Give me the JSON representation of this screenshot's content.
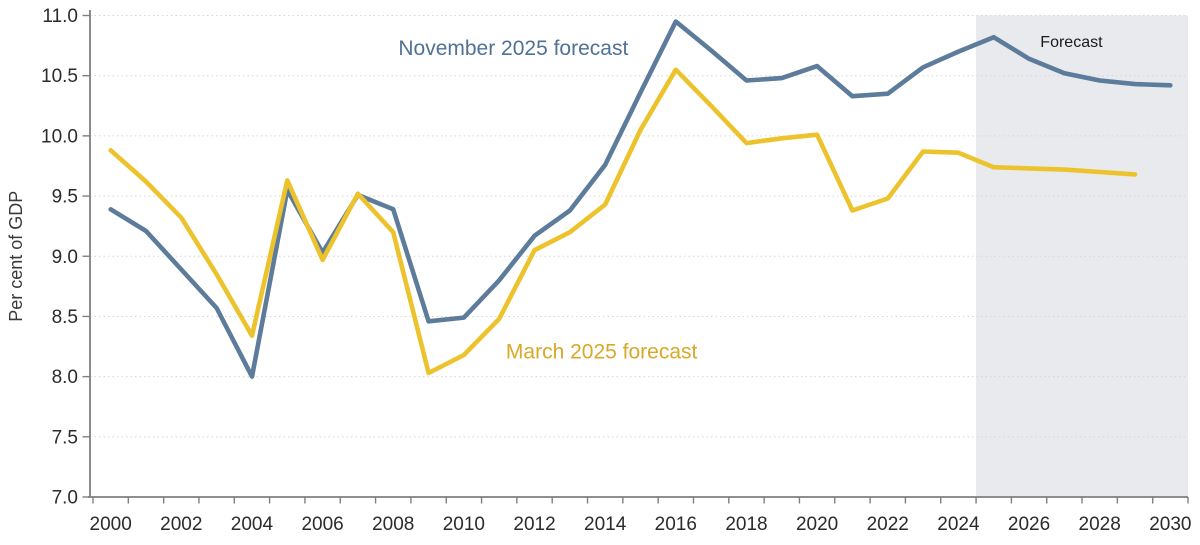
{
  "chart_data": {
    "type": "line",
    "title": "",
    "xlabel": "",
    "ylabel": "Per cent of GDP",
    "xlim": [
      1999.5,
      2030.5
    ],
    "ylim": [
      7.0,
      11.0
    ],
    "grid": "horizontal-dotted",
    "legend_position": "inline-labels",
    "x": [
      2000,
      2001,
      2002,
      2003,
      2004,
      2005,
      2006,
      2007,
      2008,
      2009,
      2010,
      2011,
      2012,
      2013,
      2014,
      2015,
      2016,
      2017,
      2018,
      2019,
      2020,
      2021,
      2022,
      2023,
      2024,
      2025,
      2026,
      2027,
      2028,
      2029,
      2030
    ],
    "series": [
      {
        "name": "November 2025 forecast",
        "color": "#5d7b9a",
        "values": [
          9.39,
          9.21,
          8.89,
          8.57,
          8.0,
          9.55,
          9.03,
          9.51,
          9.39,
          8.46,
          8.49,
          8.8,
          9.17,
          9.38,
          9.76,
          10.36,
          10.95,
          10.71,
          10.46,
          10.48,
          10.58,
          10.33,
          10.35,
          10.57,
          10.7,
          10.82,
          10.64,
          10.52,
          10.46,
          10.43,
          10.42
        ]
      },
      {
        "name": "March 2025 forecast",
        "color": "#ecc32d",
        "values": [
          9.88,
          9.62,
          9.32,
          8.85,
          8.34,
          9.63,
          8.97,
          9.52,
          9.2,
          8.03,
          8.18,
          8.48,
          9.05,
          9.2,
          9.43,
          10.05,
          10.55,
          10.25,
          9.94,
          9.98,
          10.01,
          9.38,
          9.48,
          9.87,
          9.86,
          9.74,
          9.73,
          9.72,
          9.7,
          9.68,
          null
        ]
      }
    ],
    "y_ticks": [
      7.0,
      7.5,
      8.0,
      8.5,
      9.0,
      9.5,
      10.0,
      10.5,
      11.0
    ],
    "y_grid_values": [
      7.5,
      8.0,
      8.5,
      9.0,
      9.5,
      10.0,
      10.5,
      11.0
    ],
    "x_tick_label_years": [
      2000,
      2002,
      2004,
      2006,
      2008,
      2010,
      2012,
      2014,
      2016,
      2018,
      2020,
      2022,
      2024,
      2026,
      2028,
      2030
    ],
    "forecast_region": {
      "start": 2024.5,
      "end": 2030.5,
      "fill": "#e8eaed"
    },
    "annotations": [
      {
        "id": "november-series-label",
        "text": "November 2025 forecast",
        "x": 2011.4,
        "y": 10.67,
        "color": "#4f7296",
        "font_size": 21
      },
      {
        "id": "march-series-label",
        "text": "March 2025 forecast",
        "x": 2013.9,
        "y": 8.15,
        "color": "#d9a826",
        "font_size": 21
      },
      {
        "id": "forecast-region-label",
        "text": "Forecast",
        "x": 2027.2,
        "y": 10.74,
        "color": "#1a1a1a",
        "font_size": 16
      }
    ],
    "style": {
      "line_width": 4.6,
      "grid_color": "#d6d6d6",
      "axis_color": "#7f7f7f",
      "tick_label_color": "#2b2b2b",
      "axis_title_color": "#3a3a3a",
      "background": "#ffffff"
    }
  }
}
